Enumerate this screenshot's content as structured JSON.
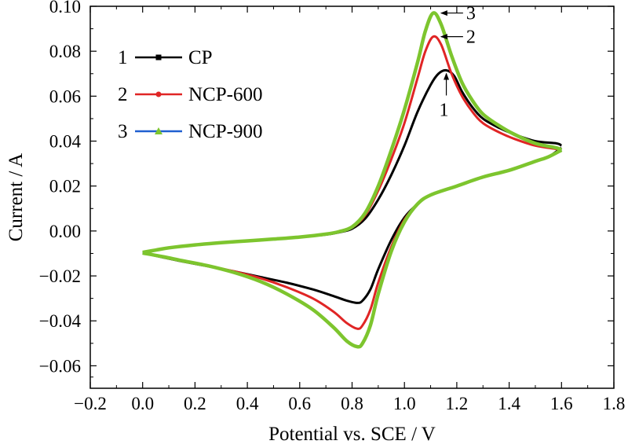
{
  "chart_data": {
    "type": "line",
    "title": "",
    "xlabel": "Potential vs. SCE / V",
    "ylabel": "Current / A",
    "xlim": [
      -0.2,
      1.8
    ],
    "ylim": [
      -0.07,
      0.1
    ],
    "xticks": [
      {
        "v": -0.2,
        "label": "−0.2"
      },
      {
        "v": 0.0,
        "label": "0.0"
      },
      {
        "v": 0.2,
        "label": "0.2"
      },
      {
        "v": 0.4,
        "label": "0.4"
      },
      {
        "v": 0.6,
        "label": "0.6"
      },
      {
        "v": 0.8,
        "label": "0.8"
      },
      {
        "v": 1.0,
        "label": "1.0"
      },
      {
        "v": 1.2,
        "label": "1.2"
      },
      {
        "v": 1.4,
        "label": "1.4"
      },
      {
        "v": 1.6,
        "label": "1.6"
      },
      {
        "v": 1.8,
        "label": "1.8"
      }
    ],
    "yticks": [
      {
        "v": -0.06,
        "label": "−0.06"
      },
      {
        "v": -0.04,
        "label": "−0.04"
      },
      {
        "v": -0.02,
        "label": "−0.02"
      },
      {
        "v": 0.0,
        "label": "0.00"
      },
      {
        "v": 0.02,
        "label": "0.02"
      },
      {
        "v": 0.04,
        "label": "0.04"
      },
      {
        "v": 0.06,
        "label": "0.06"
      },
      {
        "v": 0.08,
        "label": "0.08"
      },
      {
        "v": 0.1,
        "label": "0.10"
      }
    ],
    "grid": false,
    "legend_position": "top-left",
    "series": [
      {
        "name": "CP",
        "number": "1",
        "color": "#000000",
        "marker": "square",
        "forward": [
          [
            0.0,
            -0.0095
          ],
          [
            0.05,
            -0.0085
          ],
          [
            0.1,
            -0.0075
          ],
          [
            0.2,
            -0.0062
          ],
          [
            0.3,
            -0.0052
          ],
          [
            0.4,
            -0.0044
          ],
          [
            0.5,
            -0.0036
          ],
          [
            0.6,
            -0.0027
          ],
          [
            0.7,
            -0.0016
          ],
          [
            0.75,
            -0.0006
          ],
          [
            0.8,
            0.001
          ],
          [
            0.85,
            0.0055
          ],
          [
            0.9,
            0.014
          ],
          [
            0.95,
            0.025
          ],
          [
            1.0,
            0.038
          ],
          [
            1.05,
            0.053
          ],
          [
            1.1,
            0.065
          ],
          [
            1.13,
            0.07
          ],
          [
            1.16,
            0.0715
          ],
          [
            1.19,
            0.069
          ],
          [
            1.22,
            0.062
          ],
          [
            1.26,
            0.055
          ],
          [
            1.3,
            0.05
          ],
          [
            1.36,
            0.046
          ],
          [
            1.42,
            0.043
          ],
          [
            1.5,
            0.04
          ],
          [
            1.58,
            0.039
          ],
          [
            1.6,
            0.038
          ]
        ],
        "reverse": [
          [
            1.6,
            0.037
          ],
          [
            1.55,
            0.033
          ],
          [
            1.5,
            0.031
          ],
          [
            1.4,
            0.027
          ],
          [
            1.3,
            0.024
          ],
          [
            1.2,
            0.02
          ],
          [
            1.1,
            0.016
          ],
          [
            1.05,
            0.012
          ],
          [
            1.0,
            0.006
          ],
          [
            0.95,
            -0.004
          ],
          [
            0.9,
            -0.017
          ],
          [
            0.87,
            -0.026
          ],
          [
            0.84,
            -0.031
          ],
          [
            0.82,
            -0.032
          ],
          [
            0.78,
            -0.031
          ],
          [
            0.73,
            -0.029
          ],
          [
            0.65,
            -0.026
          ],
          [
            0.55,
            -0.023
          ],
          [
            0.45,
            -0.0205
          ],
          [
            0.35,
            -0.018
          ],
          [
            0.25,
            -0.0157
          ],
          [
            0.15,
            -0.0135
          ],
          [
            0.08,
            -0.0118
          ],
          [
            0.0,
            -0.0098
          ]
        ]
      },
      {
        "name": "NCP-600",
        "number": "2",
        "color": "#e02525",
        "marker": "circle",
        "forward": [
          [
            0.0,
            -0.0095
          ],
          [
            0.05,
            -0.0085
          ],
          [
            0.1,
            -0.0075
          ],
          [
            0.2,
            -0.0062
          ],
          [
            0.3,
            -0.0052
          ],
          [
            0.4,
            -0.0044
          ],
          [
            0.5,
            -0.0036
          ],
          [
            0.6,
            -0.0027
          ],
          [
            0.7,
            -0.0015
          ],
          [
            0.75,
            -0.0004
          ],
          [
            0.8,
            0.0015
          ],
          [
            0.85,
            0.007
          ],
          [
            0.9,
            0.018
          ],
          [
            0.95,
            0.032
          ],
          [
            1.0,
            0.048
          ],
          [
            1.05,
            0.068
          ],
          [
            1.08,
            0.08
          ],
          [
            1.11,
            0.0865
          ],
          [
            1.14,
            0.083
          ],
          [
            1.18,
            0.07
          ],
          [
            1.22,
            0.06
          ],
          [
            1.26,
            0.053
          ],
          [
            1.3,
            0.048
          ],
          [
            1.36,
            0.044
          ],
          [
            1.42,
            0.041
          ],
          [
            1.5,
            0.038
          ],
          [
            1.58,
            0.0365
          ],
          [
            1.6,
            0.036
          ]
        ],
        "reverse": [
          [
            1.6,
            0.036
          ],
          [
            1.55,
            0.033
          ],
          [
            1.5,
            0.031
          ],
          [
            1.4,
            0.027
          ],
          [
            1.3,
            0.024
          ],
          [
            1.2,
            0.02
          ],
          [
            1.1,
            0.016
          ],
          [
            1.05,
            0.012
          ],
          [
            1.0,
            0.005
          ],
          [
            0.95,
            -0.007
          ],
          [
            0.9,
            -0.023
          ],
          [
            0.87,
            -0.035
          ],
          [
            0.84,
            -0.042
          ],
          [
            0.82,
            -0.0435
          ],
          [
            0.78,
            -0.041
          ],
          [
            0.73,
            -0.036
          ],
          [
            0.65,
            -0.03
          ],
          [
            0.55,
            -0.025
          ],
          [
            0.45,
            -0.021
          ],
          [
            0.35,
            -0.018
          ],
          [
            0.25,
            -0.0155
          ],
          [
            0.15,
            -0.0133
          ],
          [
            0.08,
            -0.0117
          ],
          [
            0.0,
            -0.0098
          ]
        ]
      },
      {
        "name": "NCP-900",
        "number": "3",
        "color": "#1f5fd0",
        "marker": "triangle",
        "forward": [
          [
            0.0,
            -0.0095
          ],
          [
            0.05,
            -0.0085
          ],
          [
            0.1,
            -0.0075
          ],
          [
            0.2,
            -0.0062
          ],
          [
            0.3,
            -0.0052
          ],
          [
            0.4,
            -0.0044
          ],
          [
            0.5,
            -0.0036
          ],
          [
            0.6,
            -0.0027
          ],
          [
            0.7,
            -0.0014
          ],
          [
            0.75,
            -0.0003
          ],
          [
            0.8,
            0.0018
          ],
          [
            0.85,
            0.008
          ],
          [
            0.9,
            0.02
          ],
          [
            0.95,
            0.036
          ],
          [
            1.0,
            0.054
          ],
          [
            1.05,
            0.075
          ],
          [
            1.08,
            0.089
          ],
          [
            1.11,
            0.097
          ],
          [
            1.14,
            0.092
          ],
          [
            1.18,
            0.078
          ],
          [
            1.22,
            0.066
          ],
          [
            1.26,
            0.058
          ],
          [
            1.3,
            0.052
          ],
          [
            1.36,
            0.047
          ],
          [
            1.42,
            0.043
          ],
          [
            1.5,
            0.039
          ],
          [
            1.58,
            0.037
          ],
          [
            1.6,
            0.036
          ]
        ],
        "reverse": [
          [
            1.6,
            0.036
          ],
          [
            1.55,
            0.033
          ],
          [
            1.5,
            0.031
          ],
          [
            1.4,
            0.027
          ],
          [
            1.3,
            0.024
          ],
          [
            1.2,
            0.02
          ],
          [
            1.1,
            0.016
          ],
          [
            1.05,
            0.012
          ],
          [
            1.0,
            0.004
          ],
          [
            0.95,
            -0.009
          ],
          [
            0.9,
            -0.028
          ],
          [
            0.87,
            -0.042
          ],
          [
            0.84,
            -0.05
          ],
          [
            0.82,
            -0.0515
          ],
          [
            0.78,
            -0.049
          ],
          [
            0.73,
            -0.043
          ],
          [
            0.65,
            -0.035
          ],
          [
            0.55,
            -0.028
          ],
          [
            0.45,
            -0.0225
          ],
          [
            0.35,
            -0.0185
          ],
          [
            0.25,
            -0.0155
          ],
          [
            0.15,
            -0.0132
          ],
          [
            0.08,
            -0.0115
          ],
          [
            0.0,
            -0.0098
          ]
        ]
      }
    ],
    "overlay": {
      "series": "NCP-900",
      "color": "#7dc52e"
    },
    "annotations": [
      {
        "text": "1",
        "x": 1.16,
        "y": 0.0715
      },
      {
        "text": "2",
        "x": 1.11,
        "y": 0.0865
      },
      {
        "text": "3",
        "x": 1.11,
        "y": 0.097
      }
    ]
  }
}
